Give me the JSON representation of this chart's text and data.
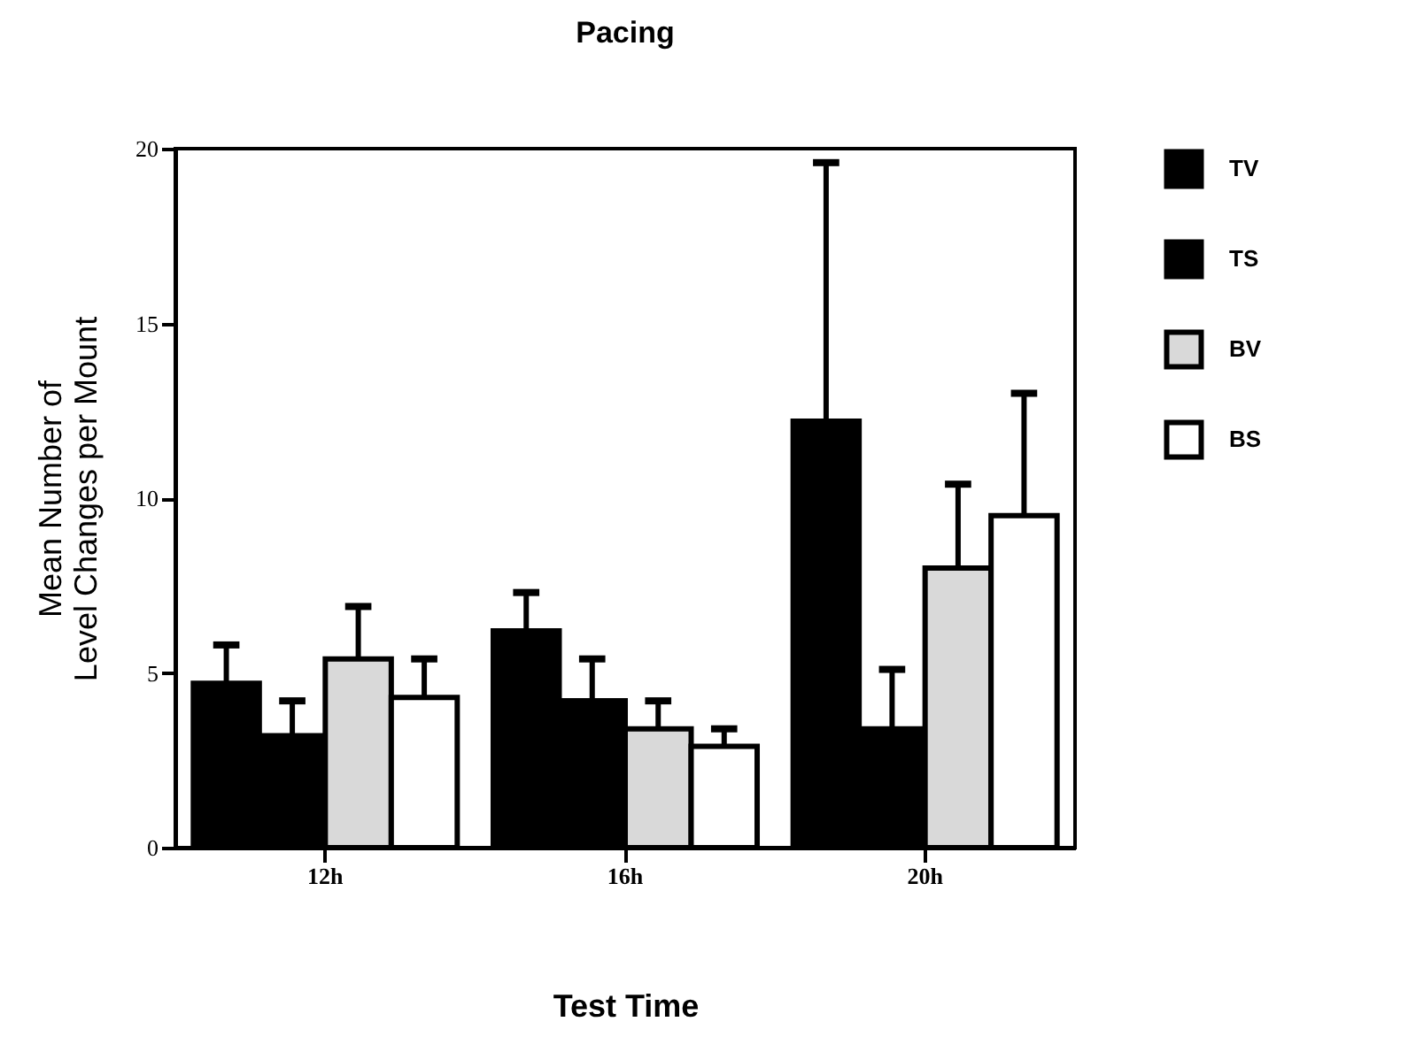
{
  "chart_data": {
    "type": "bar",
    "title": "Pacing",
    "xlabel": "Test Time",
    "ylabel": "Mean Number of\nLevel Changes per Mount",
    "categories": [
      "12h",
      "16h",
      "20h"
    ],
    "series": [
      {
        "name": "TV",
        "color": "#000000",
        "values": [
          4.7,
          6.2,
          12.2
        ],
        "errors": [
          [
            4.7,
            5.8
          ],
          [
            6.2,
            7.3
          ],
          [
            12.2,
            19.6
          ]
        ]
      },
      {
        "name": "TS",
        "color": "#000000",
        "values": [
          3.2,
          4.2,
          3.4
        ],
        "errors": [
          [
            3.2,
            4.2
          ],
          [
            4.2,
            5.4
          ],
          [
            3.4,
            5.1
          ]
        ]
      },
      {
        "name": "BV",
        "color": "#d9d9d9",
        "values": [
          5.4,
          3.4,
          8.0
        ],
        "errors": [
          [
            5.4,
            6.9
          ],
          [
            3.4,
            4.2
          ],
          [
            8.0,
            10.4
          ]
        ]
      },
      {
        "name": "BS",
        "color": "#ffffff",
        "values": [
          4.3,
          2.9,
          9.5
        ],
        "errors": [
          [
            4.3,
            5.4
          ],
          [
            2.9,
            3.4
          ],
          [
            9.5,
            13.0
          ]
        ]
      }
    ],
    "ylim": [
      0,
      20
    ],
    "yticks": [
      0,
      5,
      10,
      15,
      20
    ],
    "grid": false,
    "legend": "right"
  }
}
